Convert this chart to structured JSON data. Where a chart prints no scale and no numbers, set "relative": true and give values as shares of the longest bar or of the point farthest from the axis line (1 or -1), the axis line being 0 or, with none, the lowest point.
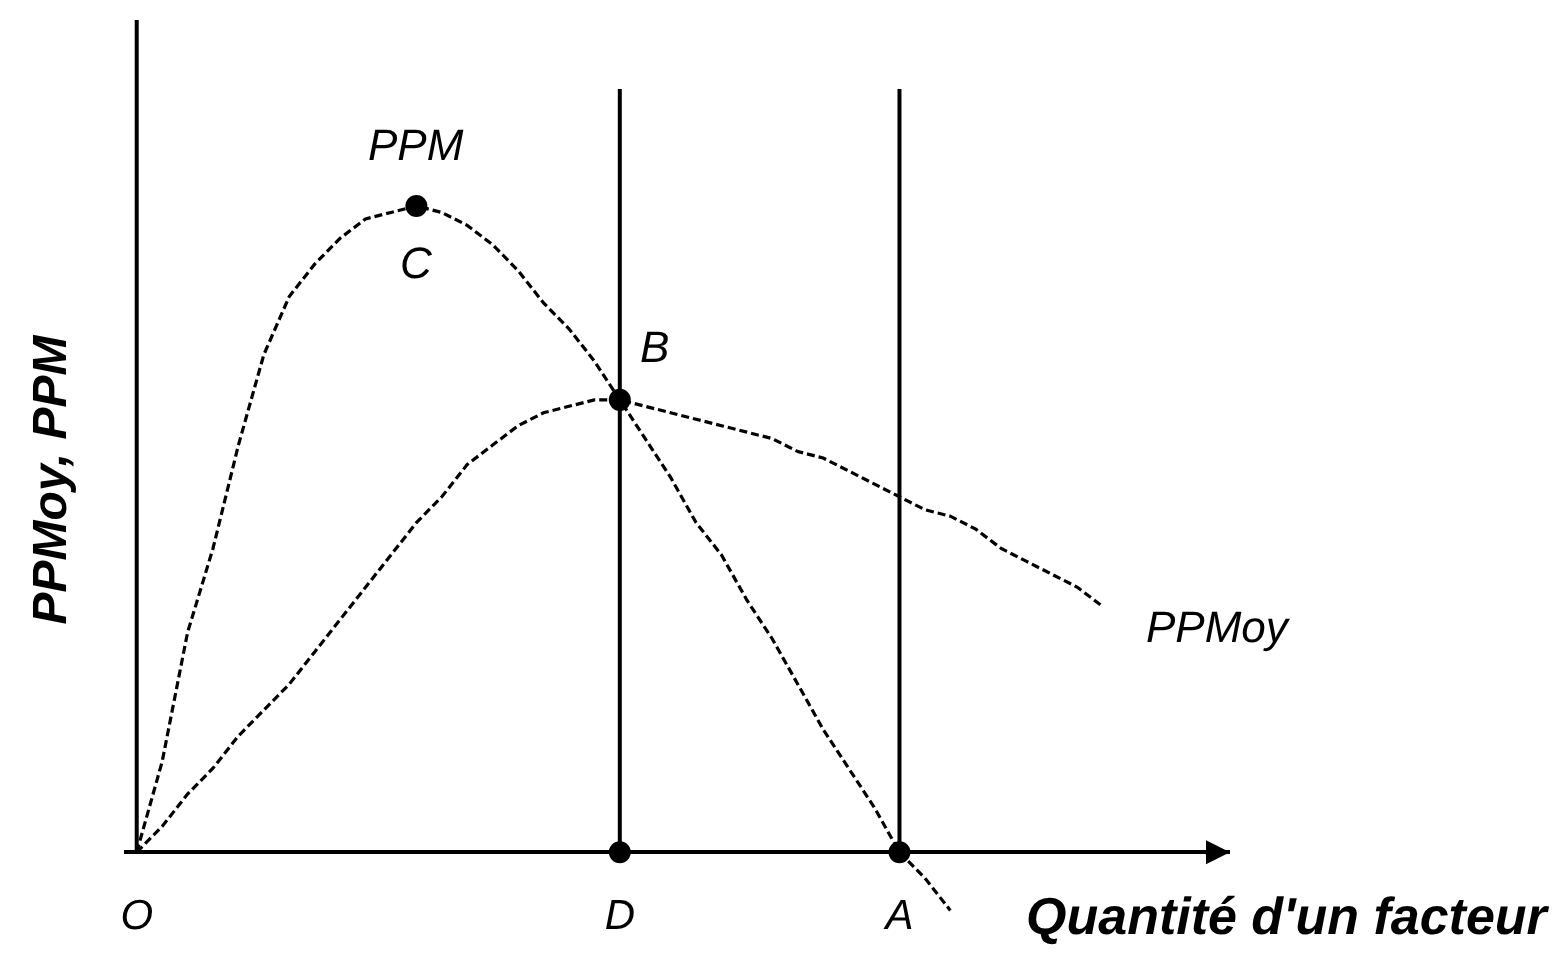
{
  "chart_data": {
    "type": "line",
    "relative": true,
    "xlabel": "Quantité d'un facteur",
    "ylabel": "PPMoy, PPM",
    "categories": [
      "O",
      null,
      null,
      null,
      null,
      null,
      null,
      null,
      null,
      null,
      null,
      null,
      null,
      null,
      null,
      null,
      null,
      null,
      null,
      "D",
      null,
      null,
      null,
      null,
      null,
      null,
      null,
      null,
      null,
      null,
      "A",
      null,
      null,
      null,
      null,
      null,
      null,
      null,
      null
    ],
    "series": [
      {
        "name": "PPM",
        "color": "#000000",
        "marker": "none",
        "values": [
          0,
          0.14,
          0.34,
          0.47,
          0.63,
          0.77,
          0.86,
          0.91,
          0.95,
          0.98,
          0.99,
          1.0,
          0.99,
          0.97,
          0.94,
          0.9,
          0.85,
          0.81,
          0.76,
          0.7,
          0.64,
          0.58,
          0.51,
          0.46,
          0.39,
          0.33,
          0.26,
          0.19,
          0.13,
          0.07,
          0,
          -0.04,
          -0.09,
          null,
          null,
          null,
          null,
          null,
          null
        ]
      },
      {
        "name": "PPMoy",
        "color": "#000000",
        "marker": "none",
        "values": [
          0,
          0.04,
          0.09,
          0.13,
          0.18,
          0.22,
          0.26,
          0.31,
          0.36,
          0.41,
          0.46,
          0.51,
          0.55,
          0.6,
          0.63,
          0.66,
          0.68,
          0.69,
          0.7,
          0.7,
          0.69,
          0.68,
          0.67,
          0.66,
          0.65,
          0.64,
          0.62,
          0.61,
          0.59,
          0.57,
          0.55,
          0.53,
          0.52,
          0.5,
          0.47,
          0.45,
          0.43,
          0.41,
          0.38
        ]
      },
      {
        "type": "scatter",
        "color": "#000000",
        "values": [
          null,
          null,
          null,
          null,
          null,
          null,
          null,
          null,
          null,
          null,
          null,
          1.0,
          null,
          null,
          null,
          null,
          null,
          null,
          null,
          0.7,
          null,
          null,
          null,
          null,
          null,
          null,
          null,
          null,
          null,
          null,
          null,
          null,
          null,
          null,
          null,
          null,
          null,
          null,
          null
        ]
      },
      {
        "type": "scatter",
        "color": "#000000",
        "values": [
          null,
          null,
          null,
          null,
          null,
          null,
          null,
          null,
          null,
          null,
          null,
          null,
          null,
          null,
          null,
          null,
          null,
          null,
          null,
          0,
          null,
          null,
          null,
          null,
          null,
          null,
          null,
          null,
          null,
          null,
          0,
          null,
          null,
          null,
          null,
          null,
          null,
          null,
          null
        ]
      }
    ],
    "annotations": [
      {
        "text": "C",
        "y": 1.0
      },
      {
        "text": "B",
        "y": 0.7
      }
    ],
    "grid": "x",
    "line_style": "dashed",
    "marker": "circle"
  }
}
